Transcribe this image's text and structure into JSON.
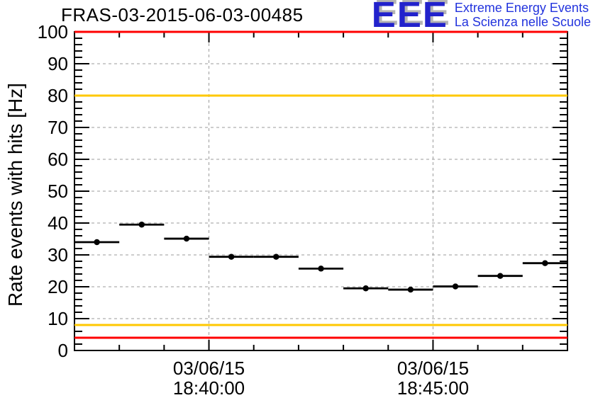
{
  "page": {
    "background": "#ffffff"
  },
  "header": {
    "title": "FRAS-03-2015-06-03-00485"
  },
  "logo": {
    "acronym": "EEE",
    "line1": "Extreme Energy Events",
    "line2": "La Scienza nelle Scuole",
    "acronym_color": "#2222cc",
    "shadow_color": "#b4b4b4",
    "text_color": "#2233dd"
  },
  "chart_data": {
    "type": "scatter",
    "title": "FRAS-03-2015-06-03-00485",
    "xlabel": "",
    "ylabel": "Rate events with hits [Hz]",
    "ylim": [
      0,
      100
    ],
    "grid": true,
    "legend": false,
    "colors": {
      "marker": "#000000",
      "frame": "#000000",
      "grid": "#9b9b9b",
      "text": "#000000",
      "alarm": "#ff0000",
      "warning": "#ffc800"
    },
    "y_major_ticks": [
      0,
      10,
      20,
      30,
      40,
      50,
      60,
      70,
      80,
      90,
      100
    ],
    "y_minor_step": 2,
    "x_axis": {
      "range_minutes": [
        0,
        11
      ],
      "minor_step_minutes": 1,
      "major_ticks": [
        {
          "minute": 3,
          "date": "03/06/15",
          "time": "18:40:00"
        },
        {
          "minute": 8,
          "date": "03/06/15",
          "time": "18:45:00"
        }
      ]
    },
    "reference_lines": [
      {
        "y": 100,
        "type": "alarm"
      },
      {
        "y": 80,
        "type": "warning"
      },
      {
        "y": 8,
        "type": "warning"
      },
      {
        "y": 4,
        "type": "alarm"
      }
    ],
    "series": [
      {
        "name": "rate-events-with-hits",
        "marker": "filled-circle",
        "points": [
          {
            "minute": 0.5,
            "xerr": 0.5,
            "y": 34.0,
            "time": "18:37:30"
          },
          {
            "minute": 1.5,
            "xerr": 0.5,
            "y": 39.5,
            "time": "18:38:30"
          },
          {
            "minute": 2.5,
            "xerr": 0.5,
            "y": 35.1,
            "time": "18:39:30"
          },
          {
            "minute": 3.5,
            "xerr": 0.5,
            "y": 29.4,
            "time": "18:40:30"
          },
          {
            "minute": 4.5,
            "xerr": 0.5,
            "y": 29.4,
            "time": "18:41:30"
          },
          {
            "minute": 5.5,
            "xerr": 0.5,
            "y": 25.7,
            "time": "18:42:30"
          },
          {
            "minute": 6.5,
            "xerr": 0.5,
            "y": 19.5,
            "time": "18:43:30"
          },
          {
            "minute": 7.5,
            "xerr": 0.5,
            "y": 19.1,
            "time": "18:44:30"
          },
          {
            "minute": 8.5,
            "xerr": 0.5,
            "y": 20.1,
            "time": "18:45:30"
          },
          {
            "minute": 9.5,
            "xerr": 0.5,
            "y": 23.4,
            "time": "18:46:30"
          },
          {
            "minute": 10.5,
            "xerr": 0.5,
            "y": 27.4,
            "time": "18:47:30"
          }
        ]
      }
    ]
  }
}
